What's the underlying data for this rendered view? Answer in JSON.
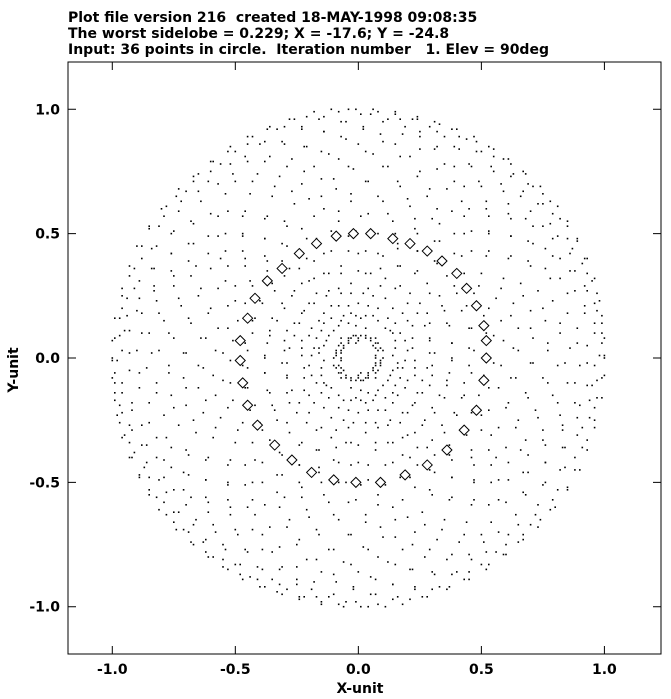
{
  "header": {
    "line1": "Plot file version 216  created 18-MAY-1998 09:08:35",
    "line2": "The worst sidelobe = 0.229; X = -17.6; Y = -24.8",
    "line3": "Input: 36 points in circle.  Iteration number   1. Elev = 90deg"
  },
  "chart_data": {
    "type": "scatter",
    "title": "",
    "xlabel": "X-unit",
    "ylabel": "Y-unit",
    "xlim": [
      -1.18,
      1.23
    ],
    "ylim": [
      -1.19,
      1.19
    ],
    "grid": false,
    "x_ticks": [
      -1.0,
      -0.5,
      0.0,
      0.5,
      1.0
    ],
    "y_ticks": [
      -1.0,
      -0.5,
      0.0,
      0.5,
      1.0
    ],
    "x_tick_labels": [
      "-1.0",
      "-0.5",
      "0.0",
      "0.5",
      "1.0"
    ],
    "y_tick_labels": [
      "-1.0",
      "-0.5",
      "0.0",
      "0.5",
      "1.0"
    ],
    "series": [
      {
        "marker": "diamond",
        "points": [
          [
            0.05,
            0.5
          ],
          [
            0.14,
            0.48
          ],
          [
            0.21,
            0.46
          ],
          [
            0.28,
            0.43
          ],
          [
            0.34,
            0.39
          ],
          [
            0.4,
            0.34
          ],
          [
            0.44,
            0.28
          ],
          [
            0.48,
            0.21
          ],
          [
            0.51,
            0.13
          ],
          [
            0.52,
            0.07
          ],
          [
            0.52,
            0.0
          ],
          [
            0.51,
            -0.09
          ],
          [
            0.48,
            -0.21
          ],
          [
            0.43,
            -0.29
          ],
          [
            0.36,
            -0.37
          ],
          [
            0.28,
            -0.43
          ],
          [
            0.19,
            -0.47
          ],
          [
            0.09,
            -0.5
          ],
          [
            -0.01,
            -0.5
          ],
          [
            -0.1,
            -0.49
          ],
          [
            -0.19,
            -0.46
          ],
          [
            -0.27,
            -0.41
          ],
          [
            -0.34,
            -0.35
          ],
          [
            -0.41,
            -0.27
          ],
          [
            -0.45,
            -0.19
          ],
          [
            -0.47,
            -0.1
          ],
          [
            -0.48,
            -0.01
          ],
          [
            -0.48,
            0.07
          ],
          [
            -0.45,
            0.16
          ],
          [
            -0.42,
            0.24
          ],
          [
            -0.37,
            0.31
          ],
          [
            -0.31,
            0.36
          ],
          [
            -0.24,
            0.42
          ],
          [
            -0.17,
            0.46
          ],
          [
            -0.09,
            0.49
          ],
          [
            -0.02,
            0.5
          ]
        ]
      },
      {
        "marker": "dot",
        "uv_coverage": "baselines between the 36 input points"
      }
    ]
  }
}
